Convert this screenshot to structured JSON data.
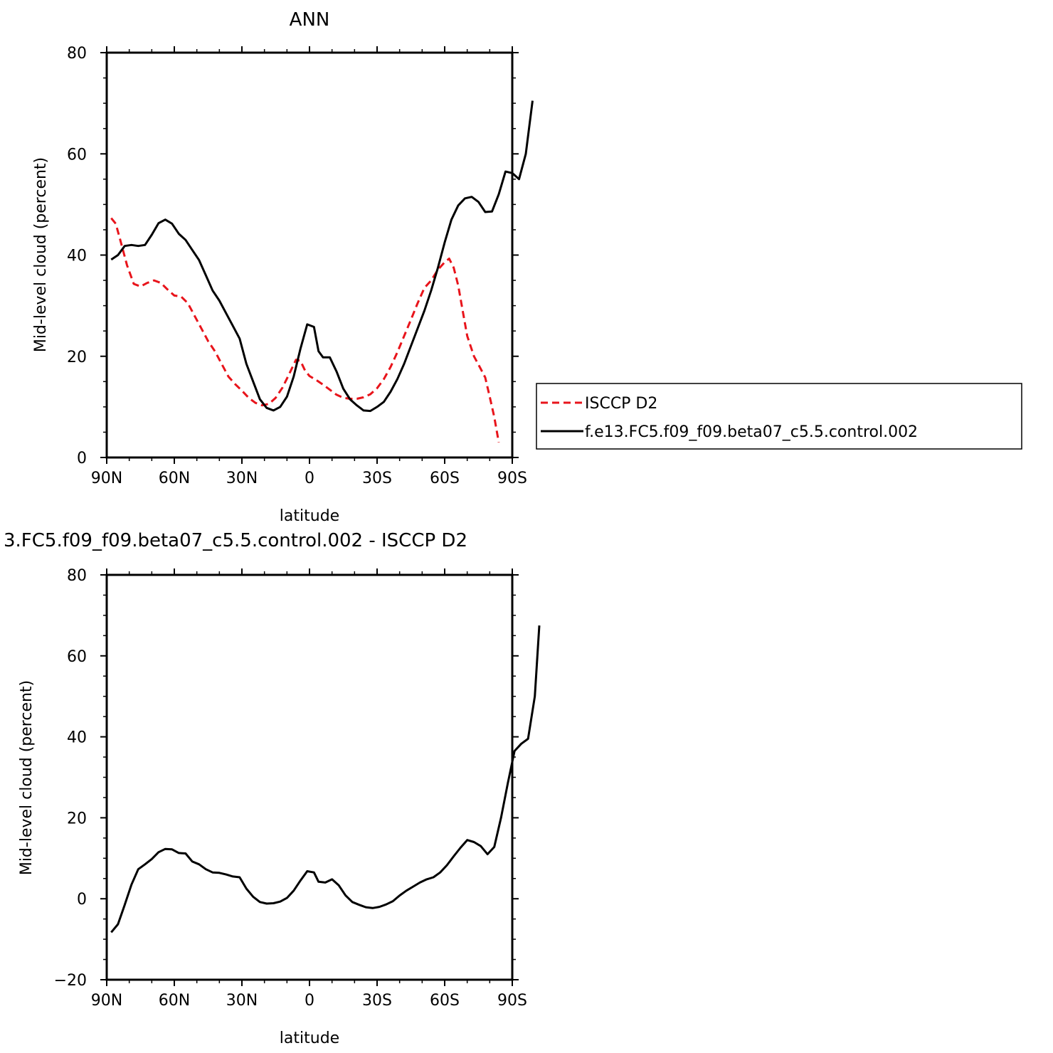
{
  "colors": {
    "black": "#000000",
    "red": "#e8141b"
  },
  "chart_data": [
    {
      "type": "line",
      "title": "ANN",
      "xlabel": "latitude",
      "ylabel": "Mid-level cloud (percent)",
      "xlim": [
        -90,
        90
      ],
      "ylim": [
        0,
        80
      ],
      "x_ticks": [
        -90,
        -60,
        -30,
        0,
        30,
        60,
        90
      ],
      "x_tick_labels": [
        "90N",
        "60N",
        "30N",
        "0",
        "30S",
        "60S",
        "90S"
      ],
      "y_ticks": [
        0,
        20,
        40,
        60,
        80
      ],
      "y_tick_labels": [
        "0",
        "20",
        "40",
        "60",
        "80"
      ],
      "legend": {
        "placement": "right"
      },
      "series": [
        {
          "name": "ISCCP D2",
          "color": "#e8141b",
          "style": "dashed",
          "points": [
            [
              -88,
              47.3
            ],
            [
              -86,
              46.2
            ],
            [
              -84,
              43.0
            ],
            [
              -81,
              38.0
            ],
            [
              -78,
              34.3
            ],
            [
              -75,
              33.8
            ],
            [
              -72,
              34.5
            ],
            [
              -69,
              35.0
            ],
            [
              -66,
              34.5
            ],
            [
              -63,
              33.2
            ],
            [
              -60,
              32.0
            ],
            [
              -57,
              31.8
            ],
            [
              -54,
              30.5
            ],
            [
              -51,
              28.0
            ],
            [
              -48,
              25.5
            ],
            [
              -45,
              23.0
            ],
            [
              -42,
              21.0
            ],
            [
              -39,
              18.5
            ],
            [
              -36,
              16.0
            ],
            [
              -33,
              14.5
            ],
            [
              -30,
              13.2
            ],
            [
              -27,
              11.8
            ],
            [
              -24,
              10.8
            ],
            [
              -21,
              10.3
            ],
            [
              -18,
              10.6
            ],
            [
              -15,
              11.8
            ],
            [
              -12,
              13.8
            ],
            [
              -9,
              16.5
            ],
            [
              -6,
              19.3
            ],
            [
              -4,
              19.1
            ],
            [
              -2,
              17.2
            ],
            [
              0,
              16.1
            ],
            [
              3,
              15.3
            ],
            [
              6,
              14.4
            ],
            [
              9,
              13.4
            ],
            [
              12,
              12.4
            ],
            [
              15,
              11.8
            ],
            [
              18,
              11.6
            ],
            [
              21,
              11.6
            ],
            [
              24,
              11.9
            ],
            [
              27,
              12.5
            ],
            [
              30,
              13.7
            ],
            [
              33,
              15.5
            ],
            [
              36,
              17.9
            ],
            [
              39,
              20.8
            ],
            [
              42,
              24.0
            ],
            [
              45,
              27.2
            ],
            [
              48,
              30.5
            ],
            [
              51,
              33.5
            ],
            [
              54,
              35.0
            ],
            [
              57,
              37.1
            ],
            [
              60,
              38.6
            ],
            [
              62,
              39.3
            ],
            [
              64,
              37.5
            ],
            [
              66,
              34.0
            ],
            [
              68,
              29.0
            ],
            [
              70,
              24.0
            ],
            [
              73,
              20.0
            ],
            [
              76,
              17.5
            ],
            [
              78,
              15.8
            ],
            [
              80,
              12.0
            ],
            [
              82,
              8.0
            ],
            [
              84,
              3.0
            ]
          ]
        },
        {
          "name": "f.e13.FC5.f09_f09.beta07_c5.5.control.002",
          "color": "#000000",
          "style": "solid",
          "points": [
            [
              -88,
              39.1
            ],
            [
              -85,
              40.0
            ],
            [
              -82,
              41.8
            ],
            [
              -79,
              42.0
            ],
            [
              -76,
              41.8
            ],
            [
              -73,
              42.0
            ],
            [
              -70,
              44.0
            ],
            [
              -67,
              46.3
            ],
            [
              -64,
              47.0
            ],
            [
              -61,
              46.2
            ],
            [
              -58,
              44.2
            ],
            [
              -55,
              43.0
            ],
            [
              -52,
              41.0
            ],
            [
              -49,
              39.0
            ],
            [
              -46,
              36.0
            ],
            [
              -43,
              33.0
            ],
            [
              -40,
              31.0
            ],
            [
              -37,
              28.5
            ],
            [
              -34,
              26.0
            ],
            [
              -31,
              23.5
            ],
            [
              -28,
              18.5
            ],
            [
              -25,
              15.0
            ],
            [
              -22,
              11.5
            ],
            [
              -19,
              9.8
            ],
            [
              -16,
              9.3
            ],
            [
              -13,
              10.0
            ],
            [
              -10,
              12.0
            ],
            [
              -7,
              16.0
            ],
            [
              -4,
              21.5
            ],
            [
              -1,
              26.3
            ],
            [
              2,
              25.8
            ],
            [
              4,
              21.0
            ],
            [
              6,
              19.8
            ],
            [
              9,
              19.8
            ],
            [
              12,
              17.0
            ],
            [
              15,
              13.6
            ],
            [
              18,
              11.5
            ],
            [
              21,
              10.3
            ],
            [
              24,
              9.3
            ],
            [
              27,
              9.2
            ],
            [
              30,
              10.0
            ],
            [
              33,
              11.0
            ],
            [
              36,
              13.0
            ],
            [
              39,
              15.5
            ],
            [
              42,
              18.5
            ],
            [
              45,
              22.0
            ],
            [
              48,
              25.5
            ],
            [
              51,
              29.0
            ],
            [
              54,
              33.0
            ],
            [
              57,
              37.5
            ],
            [
              60,
              42.5
            ],
            [
              63,
              47.0
            ],
            [
              66,
              49.8
            ],
            [
              69,
              51.2
            ],
            [
              72,
              51.5
            ],
            [
              75,
              50.5
            ],
            [
              78,
              48.5
            ],
            [
              81,
              48.6
            ],
            [
              84,
              52.0
            ],
            [
              87,
              56.5
            ],
            [
              90,
              56.2
            ],
            [
              93,
              55.0
            ],
            [
              96,
              60.0
            ],
            [
              99,
              70.5
            ]
          ]
        }
      ]
    },
    {
      "type": "line",
      "title": "3.FC5.f09_f09.beta07_c5.5.control.002 - ISCCP D2",
      "xlabel": "latitude",
      "ylabel": "Mid-level cloud (percent)",
      "xlim": [
        -90,
        90
      ],
      "ylim": [
        -20,
        80
      ],
      "x_ticks": [
        -90,
        -60,
        -30,
        0,
        30,
        60,
        90
      ],
      "x_tick_labels": [
        "90N",
        "60N",
        "30N",
        "0",
        "30S",
        "60S",
        "90S"
      ],
      "y_ticks": [
        -20,
        0,
        20,
        40,
        60,
        80
      ],
      "y_tick_labels": [
        "−20",
        "0",
        "20",
        "40",
        "60",
        "80"
      ],
      "series": [
        {
          "color": "#000000",
          "style": "solid",
          "points": [
            [
              -88,
              -8.3
            ],
            [
              -85,
              -6.3
            ],
            [
              -82,
              -1.5
            ],
            [
              -79,
              3.5
            ],
            [
              -76,
              7.3
            ],
            [
              -73,
              8.5
            ],
            [
              -70,
              9.8
            ],
            [
              -67,
              11.5
            ],
            [
              -64,
              12.3
            ],
            [
              -61,
              12.2
            ],
            [
              -58,
              11.3
            ],
            [
              -55,
              11.2
            ],
            [
              -52,
              9.2
            ],
            [
              -49,
              8.5
            ],
            [
              -46,
              7.3
            ],
            [
              -43,
              6.5
            ],
            [
              -40,
              6.4
            ],
            [
              -37,
              6.0
            ],
            [
              -34,
              5.5
            ],
            [
              -31,
              5.3
            ],
            [
              -28,
              2.5
            ],
            [
              -25,
              0.5
            ],
            [
              -22,
              -0.8
            ],
            [
              -19,
              -1.2
            ],
            [
              -16,
              -1.1
            ],
            [
              -13,
              -0.7
            ],
            [
              -10,
              0.2
            ],
            [
              -7,
              2.0
            ],
            [
              -4,
              4.5
            ],
            [
              -1,
              6.8
            ],
            [
              2,
              6.5
            ],
            [
              4,
              4.2
            ],
            [
              7,
              4.0
            ],
            [
              10,
              4.8
            ],
            [
              13,
              3.3
            ],
            [
              16,
              0.8
            ],
            [
              19,
              -0.8
            ],
            [
              22,
              -1.5
            ],
            [
              25,
              -2.1
            ],
            [
              28,
              -2.3
            ],
            [
              31,
              -2.0
            ],
            [
              34,
              -1.4
            ],
            [
              37,
              -0.6
            ],
            [
              40,
              0.8
            ],
            [
              43,
              2.0
            ],
            [
              46,
              3.0
            ],
            [
              49,
              4.0
            ],
            [
              52,
              4.8
            ],
            [
              55,
              5.3
            ],
            [
              58,
              6.5
            ],
            [
              61,
              8.3
            ],
            [
              64,
              10.5
            ],
            [
              67,
              12.6
            ],
            [
              70,
              14.5
            ],
            [
              73,
              14.0
            ],
            [
              76,
              13.0
            ],
            [
              79,
              11.0
            ],
            [
              82,
              12.8
            ],
            [
              85,
              20.0
            ],
            [
              88,
              28.5
            ],
            [
              91,
              36.5
            ],
            [
              94,
              38.3
            ],
            [
              97,
              39.5
            ],
            [
              100,
              50.0
            ],
            [
              102,
              67.5
            ]
          ]
        }
      ]
    }
  ]
}
